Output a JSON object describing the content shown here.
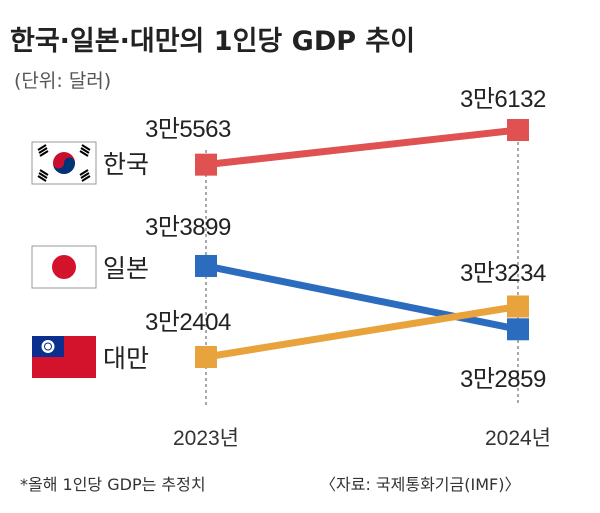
{
  "chart_data": {
    "type": "line",
    "title": "한국·일본·대만의 1인당 GDP 추이",
    "unit_label": "(단위: 달러)",
    "categories": [
      "2023년",
      "2024년"
    ],
    "series": [
      {
        "name": "한국",
        "values": [
          35563,
          36132
        ],
        "labels": [
          "3만5563",
          "3만6132"
        ],
        "color": "#e05252",
        "flag": "south-korea-flag"
      },
      {
        "name": "일본",
        "values": [
          33899,
          32859
        ],
        "labels": [
          "3만3899",
          "3만2859"
        ],
        "color": "#2b6cbf",
        "flag": "japan-flag"
      },
      {
        "name": "대만",
        "values": [
          32404,
          33234
        ],
        "labels": [
          "3만2404",
          "3만3234"
        ],
        "color": "#e8a33c",
        "flag": "taiwan-flag"
      }
    ],
    "footnote": "*올해 1인당 GDP는 추정치",
    "source": "〈자료: 국제통화기금(IMF)〉"
  }
}
